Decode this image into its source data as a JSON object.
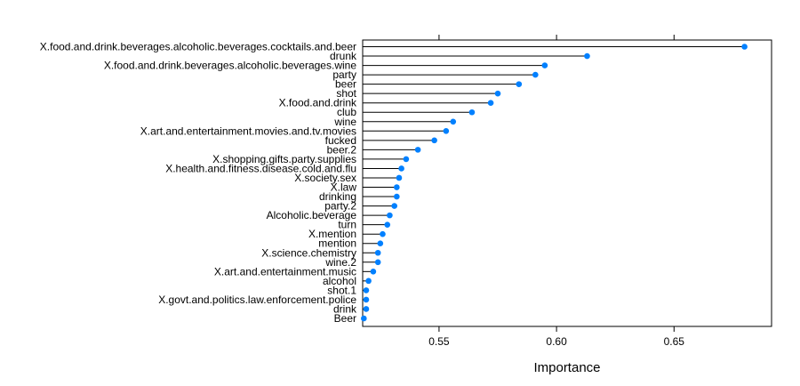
{
  "chart_data": {
    "type": "dot",
    "title": "",
    "xlabel": "Importance",
    "ylabel": "",
    "xlim": [
      0.5175,
      0.6915
    ],
    "xticks": [
      0.55,
      0.6,
      0.65
    ],
    "xtick_labels": [
      "0.55",
      "0.60",
      "0.65"
    ],
    "grid": false,
    "legend": "none",
    "point_color": "#0080ff",
    "categories": [
      "X.food.and.drink.beverages.alcoholic.beverages.cocktails.and.beer",
      "drunk",
      "X.food.and.drink.beverages.alcoholic.beverages.wine",
      "party",
      "beer",
      "shot",
      "X.food.and.drink",
      "club",
      "wine",
      "X.art.and.entertainment.movies.and.tv.movies",
      "fucked",
      "beer.2",
      "X.shopping.gifts.party.supplies",
      "X.health.and.fitness.disease.cold.and.flu",
      "X.society.sex",
      "X.law",
      "drinking",
      "party.2",
      "Alcoholic.beverage",
      "turn",
      "X.mention",
      "mention",
      "X.science.chemistry",
      "wine.2",
      "X.art.and.entertainment.music",
      "alcohol",
      "shot.1",
      "X.govt.and.politics.law.enforcement.police",
      "drink",
      "Beer"
    ],
    "values": [
      0.68,
      0.613,
      0.595,
      0.591,
      0.584,
      0.575,
      0.572,
      0.564,
      0.556,
      0.553,
      0.548,
      0.541,
      0.536,
      0.534,
      0.533,
      0.532,
      0.532,
      0.531,
      0.529,
      0.528,
      0.526,
      0.525,
      0.524,
      0.524,
      0.522,
      0.52,
      0.519,
      0.519,
      0.519,
      0.518
    ]
  }
}
